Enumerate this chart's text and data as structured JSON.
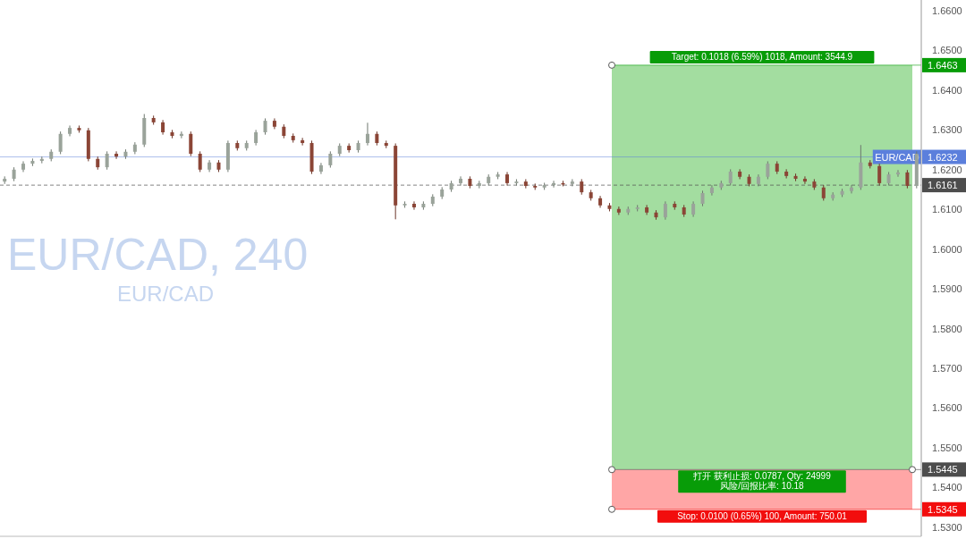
{
  "chart_data": {
    "type": "candlestick",
    "title": "EUR/CAD, 240",
    "subtitle": "EUR/CAD",
    "categories": [
      null,
      null,
      null,
      null,
      null,
      null,
      null,
      null,
      null,
      null,
      null,
      null,
      null,
      null,
      null,
      null,
      null,
      null,
      null,
      null,
      null,
      null,
      null,
      null,
      null,
      null,
      null,
      null,
      null,
      null,
      null,
      null,
      null,
      null,
      null,
      null,
      null,
      null,
      null,
      null,
      null,
      null,
      null,
      null,
      null,
      null,
      null,
      null,
      null,
      null,
      null,
      null,
      null,
      null,
      null,
      null,
      null,
      null,
      null,
      null,
      null,
      null,
      null,
      null,
      null,
      null,
      null,
      null,
      null,
      null,
      null,
      null,
      null,
      null,
      null,
      null,
      null,
      null,
      null,
      null,
      null,
      null,
      null,
      null,
      null,
      null,
      null,
      null,
      null,
      null,
      null,
      null,
      null,
      null,
      null,
      null,
      null,
      null,
      null
    ],
    "ohlc": [
      [
        1.617,
        1.6183,
        1.6164,
        1.6177
      ],
      [
        1.6177,
        1.6206,
        1.6171,
        1.62
      ],
      [
        1.62,
        1.6221,
        1.6194,
        1.6215
      ],
      [
        1.6215,
        1.6228,
        1.6209,
        1.6222
      ],
      [
        1.6222,
        1.6233,
        1.6216,
        1.6227
      ],
      [
        1.6227,
        1.6251,
        1.6221,
        1.6245
      ],
      [
        1.6245,
        1.6296,
        1.6239,
        1.629
      ],
      [
        1.629,
        1.6311,
        1.6284,
        1.6305
      ],
      [
        1.6305,
        1.6311,
        1.6293,
        1.6299
      ],
      [
        1.6299,
        1.6305,
        1.6221,
        1.6227
      ],
      [
        1.6227,
        1.6233,
        1.62,
        1.6206
      ],
      [
        1.6206,
        1.6246,
        1.62,
        1.624
      ],
      [
        1.624,
        1.6246,
        1.6227,
        1.6233
      ],
      [
        1.6233,
        1.6251,
        1.6227,
        1.6245
      ],
      [
        1.6245,
        1.6269,
        1.6239,
        1.6263
      ],
      [
        1.6263,
        1.634,
        1.6257,
        1.633
      ],
      [
        1.633,
        1.6336,
        1.6313,
        1.6319
      ],
      [
        1.6319,
        1.6325,
        1.6288,
        1.6294
      ],
      [
        1.6294,
        1.63,
        1.6279,
        1.6285
      ],
      [
        1.6285,
        1.6296,
        1.6279,
        1.629
      ],
      [
        1.629,
        1.6296,
        1.6234,
        1.624
      ],
      [
        1.624,
        1.6246,
        1.6194,
        1.62
      ],
      [
        1.62,
        1.6224,
        1.6194,
        1.6218
      ],
      [
        1.6218,
        1.6224,
        1.6194,
        1.62
      ],
      [
        1.62,
        1.6273,
        1.6194,
        1.6267
      ],
      [
        1.6267,
        1.6273,
        1.6248,
        1.6254
      ],
      [
        1.6254,
        1.6273,
        1.6248,
        1.6267
      ],
      [
        1.6267,
        1.63,
        1.6261,
        1.6294
      ],
      [
        1.6294,
        1.6329,
        1.6288,
        1.6323
      ],
      [
        1.6323,
        1.6329,
        1.6302,
        1.6308
      ],
      [
        1.6308,
        1.6314,
        1.6279,
        1.6285
      ],
      [
        1.6285,
        1.6291,
        1.6268,
        1.6274
      ],
      [
        1.6274,
        1.628,
        1.6261,
        1.6267
      ],
      [
        1.6267,
        1.6273,
        1.6189,
        1.6195
      ],
      [
        1.6195,
        1.6217,
        1.6189,
        1.6211
      ],
      [
        1.6211,
        1.6246,
        1.6205,
        1.624
      ],
      [
        1.624,
        1.6266,
        1.6234,
        1.626
      ],
      [
        1.626,
        1.6266,
        1.6243,
        1.6249
      ],
      [
        1.6249,
        1.6273,
        1.6243,
        1.6267
      ],
      [
        1.6267,
        1.6318,
        1.6261,
        1.629
      ],
      [
        1.629,
        1.6296,
        1.6261,
        1.6267
      ],
      [
        1.6267,
        1.6273,
        1.6254,
        1.626
      ],
      [
        1.626,
        1.6266,
        1.6075,
        1.611
      ],
      [
        1.611,
        1.612,
        1.6104,
        1.6114
      ],
      [
        1.6114,
        1.612,
        1.6099,
        1.6105
      ],
      [
        1.6105,
        1.612,
        1.6099,
        1.6114
      ],
      [
        1.6114,
        1.6138,
        1.6108,
        1.6132
      ],
      [
        1.6132,
        1.6156,
        1.6126,
        1.615
      ],
      [
        1.615,
        1.6172,
        1.6144,
        1.6166
      ],
      [
        1.6166,
        1.6183,
        1.616,
        1.6177
      ],
      [
        1.6177,
        1.6183,
        1.6153,
        1.6159
      ],
      [
        1.6159,
        1.6172,
        1.6153,
        1.6166
      ],
      [
        1.6166,
        1.6188,
        1.616,
        1.6182
      ],
      [
        1.6182,
        1.6194,
        1.6176,
        1.6188
      ],
      [
        1.6188,
        1.6194,
        1.616,
        1.6166
      ],
      [
        1.6166,
        1.6176,
        1.616,
        1.617
      ],
      [
        1.617,
        1.6176,
        1.6153,
        1.6159
      ],
      [
        1.6159,
        1.6165,
        1.6149,
        1.6155
      ],
      [
        1.6155,
        1.6167,
        1.6149,
        1.6161
      ],
      [
        1.6161,
        1.6172,
        1.6155,
        1.6166
      ],
      [
        1.6166,
        1.6172,
        1.6158,
        1.6164
      ],
      [
        1.6164,
        1.6176,
        1.6158,
        1.617
      ],
      [
        1.617,
        1.6176,
        1.6137,
        1.6143
      ],
      [
        1.6143,
        1.6149,
        1.6122,
        1.6128
      ],
      [
        1.6128,
        1.6134,
        1.6104,
        1.611
      ],
      [
        1.611,
        1.6116,
        1.6095,
        1.6101
      ],
      [
        1.6101,
        1.6107,
        1.6086,
        1.6092
      ],
      [
        1.6092,
        1.6107,
        1.6086,
        1.6101
      ],
      [
        1.6101,
        1.6111,
        1.6095,
        1.6105
      ],
      [
        1.6105,
        1.6111,
        1.6086,
        1.6092
      ],
      [
        1.6092,
        1.6098,
        1.6074,
        1.608
      ],
      [
        1.608,
        1.612,
        1.6074,
        1.6114
      ],
      [
        1.6114,
        1.612,
        1.6099,
        1.6105
      ],
      [
        1.6105,
        1.6111,
        1.6081,
        1.6087
      ],
      [
        1.6087,
        1.612,
        1.6081,
        1.6114
      ],
      [
        1.6114,
        1.6147,
        1.6108,
        1.6141
      ],
      [
        1.6141,
        1.6161,
        1.6135,
        1.6155
      ],
      [
        1.6155,
        1.6172,
        1.6149,
        1.6166
      ],
      [
        1.6166,
        1.6201,
        1.616,
        1.6195
      ],
      [
        1.6195,
        1.6201,
        1.6176,
        1.6182
      ],
      [
        1.6182,
        1.6188,
        1.6158,
        1.6164
      ],
      [
        1.6164,
        1.6188,
        1.6158,
        1.6182
      ],
      [
        1.6182,
        1.6221,
        1.6176,
        1.6215
      ],
      [
        1.6215,
        1.6221,
        1.6189,
        1.6195
      ],
      [
        1.6195,
        1.6201,
        1.6178,
        1.6184
      ],
      [
        1.6184,
        1.619,
        1.6171,
        1.6177
      ],
      [
        1.6177,
        1.6183,
        1.6164,
        1.617
      ],
      [
        1.617,
        1.6176,
        1.6149,
        1.6155
      ],
      [
        1.6155,
        1.6161,
        1.6122,
        1.6128
      ],
      [
        1.6128,
        1.6143,
        1.6122,
        1.6137
      ],
      [
        1.6137,
        1.6152,
        1.6131,
        1.6146
      ],
      [
        1.6146,
        1.6161,
        1.614,
        1.6155
      ],
      [
        1.6155,
        1.6262,
        1.6149,
        1.6218
      ],
      [
        1.6218,
        1.6224,
        1.6203,
        1.6209
      ],
      [
        1.6209,
        1.6215,
        1.616,
        1.6166
      ],
      [
        1.6166,
        1.6194,
        1.616,
        1.6188
      ],
      [
        1.6188,
        1.6199,
        1.6182,
        1.6193
      ],
      [
        1.6193,
        1.6199,
        1.6153,
        1.6159
      ],
      [
        1.6159,
        1.6246,
        1.6153,
        1.624
      ]
    ],
    "ylim": [
      1.5277,
      1.6627
    ],
    "yticks": [
      {
        "value": 1.53,
        "label": "1.5300"
      },
      {
        "value": 1.54,
        "label": "1.5400"
      },
      {
        "value": 1.55,
        "label": "1.5500"
      },
      {
        "value": 1.56,
        "label": "1.5600"
      },
      {
        "value": 1.57,
        "label": "1.5700"
      },
      {
        "value": 1.58,
        "label": "1.5800"
      },
      {
        "value": 1.59,
        "label": "1.5900"
      },
      {
        "value": 1.6,
        "label": "1.6000"
      },
      {
        "value": 1.61,
        "label": "1.6100"
      },
      {
        "value": 1.62,
        "label": "1.6200"
      },
      {
        "value": 1.63,
        "label": "1.6300"
      },
      {
        "value": 1.64,
        "label": "1.6400"
      },
      {
        "value": 1.65,
        "label": "1.6500"
      },
      {
        "value": 1.66,
        "label": "1.6600"
      }
    ],
    "tick_labels": "y",
    "bands": [
      {
        "axis": "y",
        "from": 1.5445,
        "to": 1.6463,
        "color": "#a3dda0"
      },
      {
        "axis": "y",
        "from": 1.5345,
        "to": 1.5445,
        "color": "#ffa6a6"
      }
    ],
    "ref_lines": [
      {
        "axis": "y",
        "value": 1.6232,
        "label": "1.6232",
        "color": "#5b7fdc",
        "line_style": "solid"
      },
      {
        "axis": "y",
        "value": 1.6161,
        "label": "1.6161",
        "color": "#4d4d4d",
        "line_style": "dashed"
      },
      {
        "axis": "y",
        "value": 1.6463,
        "label": "1.6463",
        "color": "#089c08"
      },
      {
        "axis": "y",
        "value": 1.5445,
        "label": "1.5445",
        "color": "#4d4d4d"
      },
      {
        "axis": "y",
        "value": 1.5345,
        "label": "1.5345",
        "color": "#f20d0d"
      }
    ],
    "annotations": [
      {
        "text": "EUR/CAD",
        "y": 1.6232
      },
      {
        "text": "Target: 0.1018 (6.59%) 1018, Amount: 3544.9",
        "y": 1.6463
      },
      {
        "text": "打开 获利止损: 0.0787, Qty: 24999\n风险/回报比率: 10.18",
        "y": 1.5445
      },
      {
        "text": "Stop: 0.0100 (0.65%) 100, Amount: 750.01",
        "y": 1.5345
      }
    ]
  }
}
